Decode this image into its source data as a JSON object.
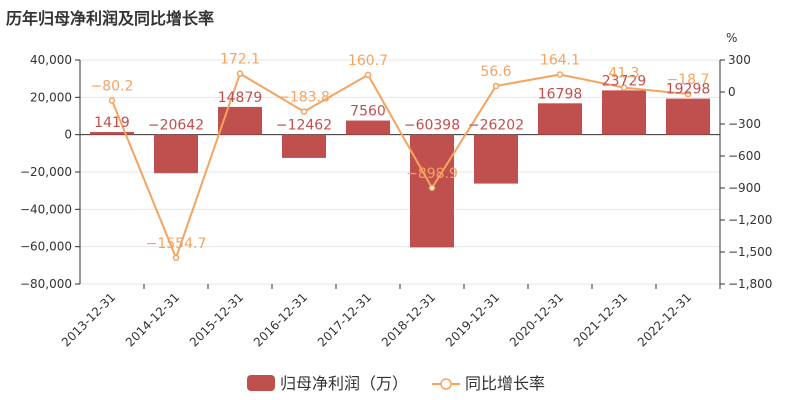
{
  "title": "历年归母净利润及同比增长率",
  "colors": {
    "bar": "#c0504d",
    "line": "#f4a460",
    "axis": "#333333",
    "grid": "#e5e5e5"
  },
  "chart_data": {
    "type": "bar",
    "categories": [
      "2013-12-31",
      "2014-12-31",
      "2015-12-31",
      "2016-12-31",
      "2017-12-31",
      "2018-12-31",
      "2019-12-31",
      "2020-12-31",
      "2021-12-31",
      "2022-12-31"
    ],
    "series": [
      {
        "name": "归母净利润（万）",
        "type": "bar",
        "axis": "left",
        "values": [
          1419,
          -20642,
          14879,
          -12462,
          7560,
          -60398,
          -26202,
          16798,
          23729,
          19298
        ]
      },
      {
        "name": "同比增长率",
        "type": "line",
        "axis": "right",
        "values": [
          -80.2,
          -1554.7,
          172.1,
          -183.8,
          160.7,
          -898.9,
          56.6,
          164.1,
          41.3,
          -18.7
        ]
      }
    ],
    "ylim_left": [
      -80000,
      40000
    ],
    "yticks_left": [
      "40,000",
      "20,000",
      "0",
      "-20,000",
      "-40,000",
      "-60,000",
      "-80,000"
    ],
    "ylim_right": [
      -1800,
      300
    ],
    "yticks_right": [
      "300",
      "0",
      "-300",
      "-600",
      "-900",
      "-1,200",
      "-1,500",
      "-1,800"
    ],
    "right_unit": "%",
    "legend_position": "bottom-center",
    "grid": true
  }
}
